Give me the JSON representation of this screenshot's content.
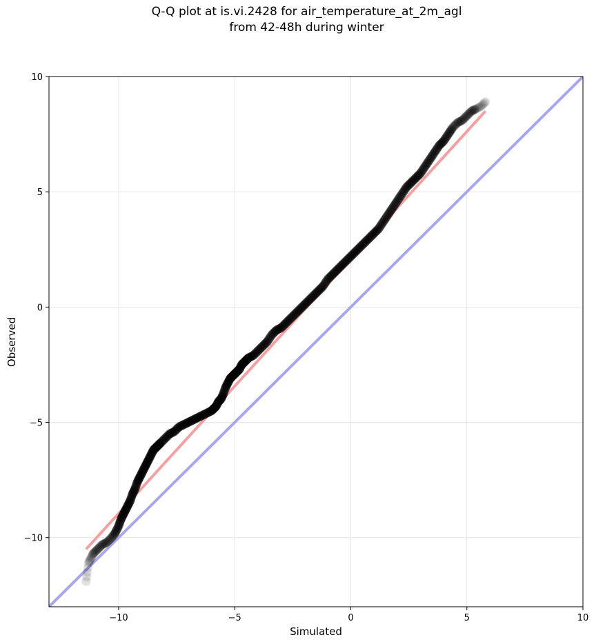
{
  "chart_data": {
    "type": "scatter",
    "title_line1": "Q-Q plot at is.vi.2428 for air_temperature_at_2m_agl",
    "title_line2": "from 42-48h during winter",
    "xlabel": "Simulated",
    "ylabel": "Observed",
    "xlim": [
      -13,
      10
    ],
    "ylim": [
      -13,
      10
    ],
    "xticks": [
      -10,
      -5,
      0,
      5,
      10
    ],
    "yticks": [
      -10,
      -5,
      0,
      5,
      10
    ],
    "grid": true,
    "fit_line": {
      "color": "#f5a0a0",
      "x": [
        -11.4,
        5.8
      ],
      "y": [
        -10.5,
        8.5
      ]
    },
    "identity_line": {
      "color": "#a7a7f0",
      "x": [
        -13,
        10
      ],
      "y": [
        -13,
        10
      ]
    },
    "point_color": "#000000",
    "series": [
      {
        "x": [
          -11.4,
          -11.3,
          -11.2,
          -11.1,
          -10.9,
          -10.7,
          -10.5,
          -10.3,
          -10.15,
          -10.0,
          -9.9,
          -9.8,
          -9.7,
          -9.6,
          -9.5,
          -9.4,
          -9.3,
          -9.2,
          -9.1,
          -9.0,
          -8.9,
          -8.8,
          -8.7,
          -8.6,
          -8.5,
          -8.4,
          -8.3,
          -8.2,
          -8.0,
          -7.8,
          -7.6,
          -7.4,
          -7.2,
          -7.0,
          -6.8,
          -6.6,
          -6.4,
          -6.2,
          -6.0,
          -5.9,
          -5.8,
          -5.7,
          -5.6,
          -5.5,
          -5.4,
          -5.3,
          -5.2,
          -5.1,
          -5.0,
          -4.9,
          -4.8,
          -4.7,
          -4.6,
          -4.5,
          -4.4,
          -4.2,
          -4.0,
          -3.8,
          -3.6,
          -3.4,
          -3.2,
          -3.0,
          -2.8,
          -2.6,
          -2.4,
          -2.2,
          -2.0,
          -1.8,
          -1.6,
          -1.4,
          -1.2,
          -1.0,
          -0.8,
          -0.6,
          -0.4,
          -0.2,
          0.0,
          0.2,
          0.4,
          0.6,
          0.8,
          1.0,
          1.2,
          1.4,
          1.6,
          1.8,
          2.0,
          2.2,
          2.4,
          2.6,
          2.8,
          3.0,
          3.2,
          3.4,
          3.6,
          3.8,
          4.0,
          4.2,
          4.4,
          4.6,
          4.8,
          5.0,
          5.2,
          5.4,
          5.6,
          5.8
        ],
        "y": [
          -11.9,
          -11.1,
          -10.9,
          -10.7,
          -10.5,
          -10.3,
          -10.2,
          -10.0,
          -9.8,
          -9.5,
          -9.2,
          -9.0,
          -8.8,
          -8.6,
          -8.4,
          -8.1,
          -7.9,
          -7.6,
          -7.4,
          -7.2,
          -7.0,
          -6.8,
          -6.6,
          -6.4,
          -6.2,
          -6.1,
          -6.0,
          -5.9,
          -5.7,
          -5.5,
          -5.4,
          -5.2,
          -5.1,
          -5.0,
          -4.9,
          -4.8,
          -4.7,
          -4.6,
          -4.5,
          -4.4,
          -4.3,
          -4.1,
          -4.0,
          -3.8,
          -3.5,
          -3.3,
          -3.1,
          -3.0,
          -2.9,
          -2.8,
          -2.7,
          -2.5,
          -2.4,
          -2.3,
          -2.2,
          -2.1,
          -1.9,
          -1.7,
          -1.5,
          -1.2,
          -1.0,
          -0.9,
          -0.7,
          -0.5,
          -0.3,
          -0.1,
          0.1,
          0.3,
          0.5,
          0.7,
          0.9,
          1.2,
          1.4,
          1.6,
          1.8,
          2.0,
          2.2,
          2.4,
          2.6,
          2.8,
          3.0,
          3.2,
          3.4,
          3.7,
          4.0,
          4.3,
          4.6,
          4.9,
          5.2,
          5.4,
          5.6,
          5.8,
          6.1,
          6.4,
          6.7,
          7.0,
          7.2,
          7.5,
          7.8,
          8.0,
          8.1,
          8.3,
          8.5,
          8.6,
          8.7,
          8.9
        ]
      }
    ]
  }
}
